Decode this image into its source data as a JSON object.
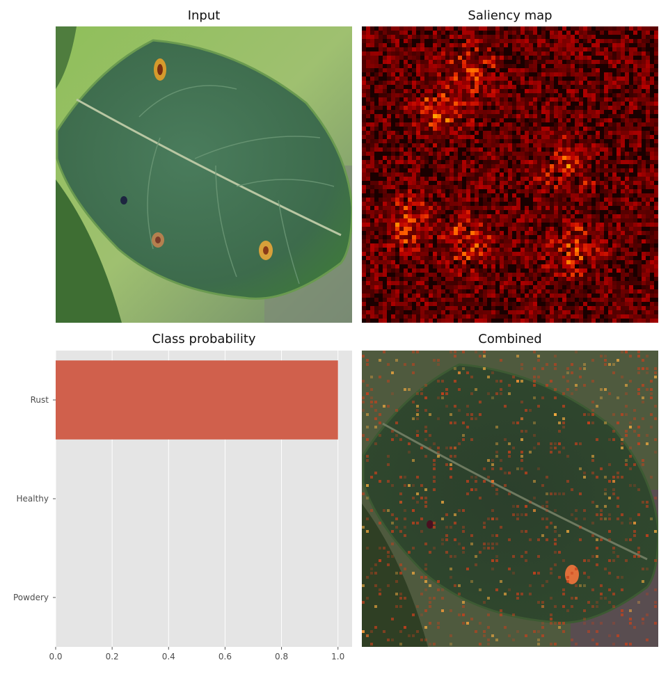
{
  "panels": {
    "input_title": "Input",
    "saliency_title": "Saliency map",
    "combined_title": "Combined"
  },
  "colors": {
    "bar": "#d0604c",
    "plot_bg": "#e5e5e5",
    "grid": "#ffffff",
    "leaf": "#3f6e4f",
    "saliency_bg": "#1a0000",
    "saliency_hot": "#ff4000"
  },
  "chart_data": {
    "type": "bar",
    "orientation": "horizontal",
    "title": "Class probability",
    "categories": [
      "Rust",
      "Healthy",
      "Powdery"
    ],
    "values": [
      1.0,
      0.0,
      0.0
    ],
    "xlim": [
      0.0,
      1.05
    ],
    "xticks": [
      "0.0",
      "0.2",
      "0.4",
      "0.6",
      "0.8",
      "1.0"
    ],
    "xlabel": "",
    "ylabel": "",
    "grid": true
  }
}
